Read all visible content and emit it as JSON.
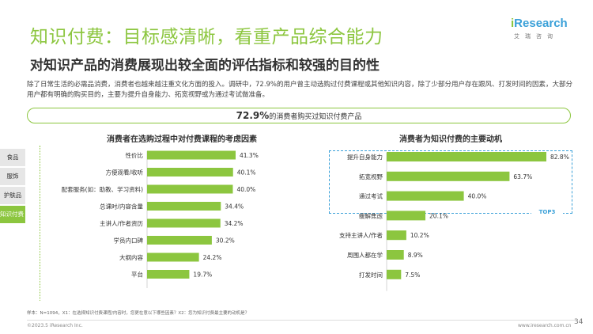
{
  "header": {
    "title": "知识付费：目标感清晰，看重产品综合能力",
    "subtitle": "对知识产品的消费展现出较全面的评估指标和较强的目的性"
  },
  "logo": {
    "word_i": "i",
    "word_rest": "Research",
    "cn": "艾瑞咨询"
  },
  "intro": "除了日常生活的必需品消费，消费者也越来越注重文化方面的投入。调研中，72.9%的用户曾主动选购过付费课程或其他知识内容，除了少部分用户存在跟风、打发时间的因素，大部分用户都有明确的购买目的，主要为提升自身能力、拓宽视野或为通过考试做准备。",
  "highlight": {
    "value": "72.9%",
    "text": "的消费者购买过知识付费产品"
  },
  "side_tabs": [
    {
      "label": "食品",
      "active": false
    },
    {
      "label": "服饰",
      "active": false
    },
    {
      "label": "护肤品",
      "active": false
    },
    {
      "label": "知识付费",
      "active": true
    }
  ],
  "top3_label": "TOP3",
  "colors": {
    "bar": "#8cc63f",
    "accent": "#3aa0d8"
  },
  "chart_data": [
    {
      "type": "bar",
      "orientation": "horizontal",
      "title": "消费者在选购过程中对付费课程的考虑因素",
      "categories": [
        "性价比",
        "方便观看/收听",
        "配套服务(如：助教、学习资料)",
        "总课时/内容含量",
        "主讲人/作者资历",
        "学员内口碑",
        "大纲内容",
        "平台"
      ],
      "values": [
        41.3,
        40.1,
        40.0,
        34.4,
        34.2,
        30.2,
        24.2,
        19.7
      ],
      "value_labels": [
        "41.3%",
        "40.1%",
        "40.0%",
        "34.4%",
        "34.2%",
        "30.2%",
        "24.2%",
        "19.7%"
      ],
      "xlim": [
        0,
        45
      ]
    },
    {
      "type": "bar",
      "orientation": "horizontal",
      "title": "消费者为知识付费的主要动机",
      "categories": [
        "提升自身能力",
        "拓宽视野",
        "通过考试",
        "缓解焦虑",
        "支持主讲人/作者",
        "周围人都在学",
        "打发时间"
      ],
      "values": [
        82.8,
        63.7,
        40.0,
        20.1,
        10.2,
        8.9,
        7.5
      ],
      "value_labels": [
        "82.8%",
        "63.7%",
        "40.0%",
        "20.1%",
        "10.2%",
        "8.9%",
        "7.5%"
      ],
      "xlim": [
        0,
        90
      ]
    }
  ],
  "footnote": "样本：N=1094，X1：在选择知识付费课程/内容时，您更在意以下哪些因素？X2：您为知识付费最主要的动机是？",
  "copyright": "©2023.5 iResearch Inc.",
  "website": "www.iresearch.com.cn",
  "page_number": "34"
}
